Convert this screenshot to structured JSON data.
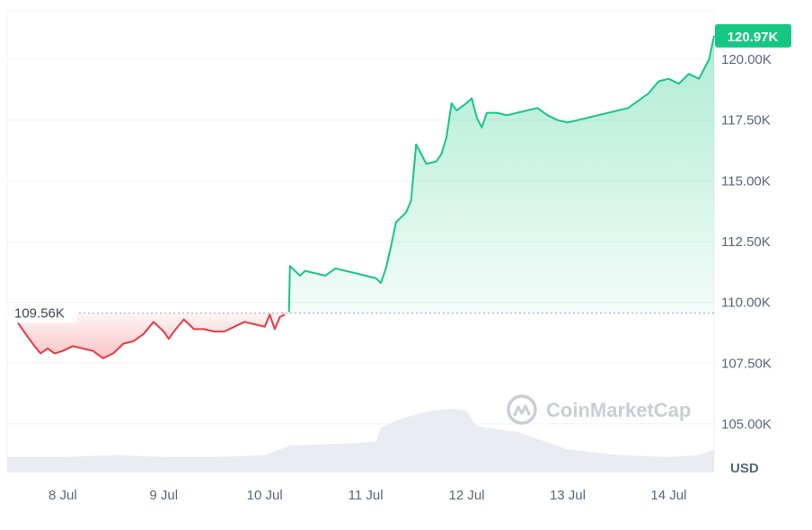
{
  "chart_data": {
    "type": "line",
    "currency": "USD",
    "x_ticks": [
      "8 Jul",
      "9 Jul",
      "10 Jul",
      "11 Jul",
      "12 Jul",
      "13 Jul",
      "14 Jul"
    ],
    "y_ticks": [
      "105.00K",
      "107.50K",
      "110.00K",
      "112.50K",
      "115.00K",
      "117.50K",
      "120.00K"
    ],
    "ylim": [
      103000,
      122000
    ],
    "reference_price": 109560,
    "reference_label": "109.56K",
    "current_price_label": "120.97K",
    "watermark": "CoinMarketCap",
    "grid": "horizontal",
    "colors": {
      "up": "#16c784",
      "down": "#ea3943",
      "grid": "#eff2f5"
    },
    "series": [
      {
        "values": [
          [
            7.45,
            109600
          ],
          [
            7.55,
            109200
          ],
          [
            7.65,
            108600
          ],
          [
            7.72,
            108200
          ],
          [
            7.78,
            107900
          ],
          [
            7.85,
            108100
          ],
          [
            7.92,
            107900
          ],
          [
            8.0,
            108000
          ],
          [
            8.1,
            108200
          ],
          [
            8.2,
            108100
          ],
          [
            8.3,
            108000
          ],
          [
            8.4,
            107700
          ],
          [
            8.5,
            107900
          ],
          [
            8.6,
            108300
          ],
          [
            8.7,
            108400
          ],
          [
            8.8,
            108700
          ],
          [
            8.9,
            109200
          ],
          [
            9.0,
            108800
          ],
          [
            9.05,
            108500
          ],
          [
            9.1,
            108800
          ],
          [
            9.2,
            109300
          ],
          [
            9.3,
            108900
          ],
          [
            9.4,
            108900
          ],
          [
            9.5,
            108800
          ],
          [
            9.6,
            108800
          ],
          [
            9.7,
            109000
          ],
          [
            9.8,
            109200
          ],
          [
            9.9,
            109100
          ],
          [
            10.0,
            109000
          ],
          [
            10.05,
            109500
          ],
          [
            10.1,
            108900
          ],
          [
            10.15,
            109400
          ],
          [
            10.2,
            109500
          ],
          [
            10.24,
            109600
          ],
          [
            10.25,
            111500
          ],
          [
            10.3,
            111300
          ],
          [
            10.35,
            111100
          ],
          [
            10.4,
            111300
          ],
          [
            10.5,
            111200
          ],
          [
            10.6,
            111100
          ],
          [
            10.7,
            111400
          ],
          [
            10.8,
            111300
          ],
          [
            10.9,
            111200
          ],
          [
            11.0,
            111100
          ],
          [
            11.1,
            111000
          ],
          [
            11.15,
            110800
          ],
          [
            11.2,
            111400
          ],
          [
            11.25,
            112300
          ],
          [
            11.3,
            113300
          ],
          [
            11.4,
            113700
          ],
          [
            11.45,
            114200
          ],
          [
            11.5,
            116500
          ],
          [
            11.6,
            115700
          ],
          [
            11.7,
            115800
          ],
          [
            11.75,
            116100
          ],
          [
            11.8,
            116800
          ],
          [
            11.85,
            118200
          ],
          [
            11.9,
            117900
          ],
          [
            12.0,
            118200
          ],
          [
            12.05,
            118400
          ],
          [
            12.1,
            117600
          ],
          [
            12.15,
            117200
          ],
          [
            12.2,
            117800
          ],
          [
            12.3,
            117800
          ],
          [
            12.4,
            117700
          ],
          [
            12.5,
            117800
          ],
          [
            12.6,
            117900
          ],
          [
            12.7,
            118000
          ],
          [
            12.8,
            117700
          ],
          [
            12.9,
            117500
          ],
          [
            13.0,
            117400
          ],
          [
            13.1,
            117500
          ],
          [
            13.2,
            117600
          ],
          [
            13.3,
            117700
          ],
          [
            13.4,
            117800
          ],
          [
            13.5,
            117900
          ],
          [
            13.6,
            118000
          ],
          [
            13.7,
            118300
          ],
          [
            13.8,
            118600
          ],
          [
            13.9,
            119100
          ],
          [
            14.0,
            119200
          ],
          [
            14.1,
            119000
          ],
          [
            14.2,
            119400
          ],
          [
            14.3,
            119200
          ],
          [
            14.35,
            119600
          ],
          [
            14.4,
            120000
          ],
          [
            14.45,
            120970
          ]
        ]
      }
    ],
    "volume": [
      [
        7.45,
        0.08
      ],
      [
        8.0,
        0.08
      ],
      [
        8.5,
        0.09
      ],
      [
        9.0,
        0.08
      ],
      [
        9.5,
        0.08
      ],
      [
        10.0,
        0.09
      ],
      [
        10.25,
        0.14
      ],
      [
        10.8,
        0.15
      ],
      [
        11.1,
        0.16
      ],
      [
        11.15,
        0.23
      ],
      [
        11.3,
        0.27
      ],
      [
        11.5,
        0.3
      ],
      [
        11.65,
        0.32
      ],
      [
        11.85,
        0.33
      ],
      [
        12.0,
        0.32
      ],
      [
        12.1,
        0.24
      ],
      [
        12.5,
        0.21
      ],
      [
        13.0,
        0.12
      ],
      [
        13.5,
        0.09
      ],
      [
        14.0,
        0.08
      ],
      [
        14.3,
        0.09
      ],
      [
        14.45,
        0.12
      ]
    ]
  }
}
